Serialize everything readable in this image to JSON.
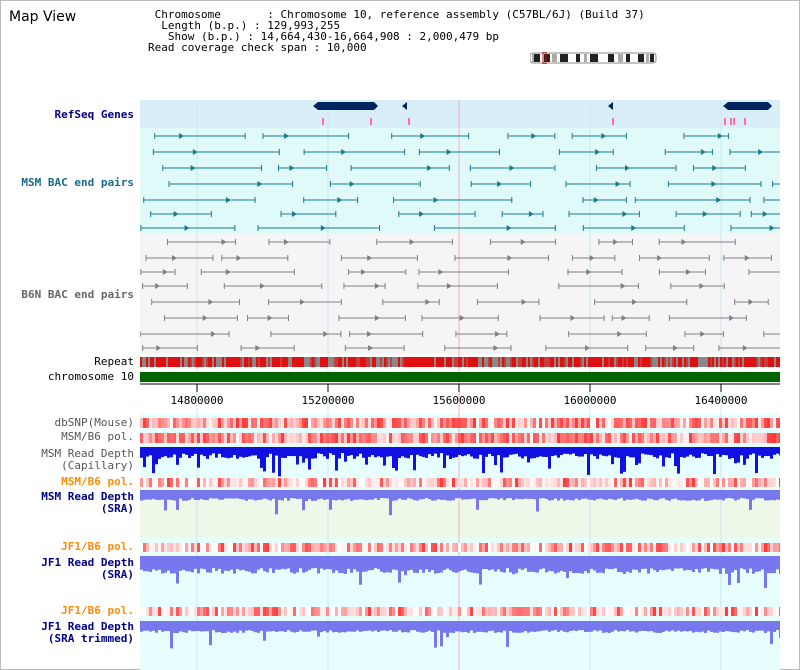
{
  "app": {
    "title": "Map View"
  },
  "info": {
    "chromosome_label": "Chromosome",
    "chromosome_value": "Chromosome 10, reference assembly (C57BL/6J) (Build 37)",
    "length_label": "Length (b.p.)",
    "length_value": "129,993,255",
    "show_label": "Show (b.p.)",
    "show_value": "14,664,430-16,664,908 : 2,000,479 bp",
    "coverage_label": "Read coverage check span",
    "coverage_value": "10,000"
  },
  "tracks": {
    "refseq": "RefSeq Genes",
    "msm_bac": "MSM BAC end pairs",
    "b6n_bac": "B6N BAC end pairs",
    "repeat": "Repeat",
    "chromosome": "chromosome 10",
    "dbsnp": "dbSNP(Mouse)",
    "msm_b6_pol": "MSM/B6 pol.",
    "msm_depth_cap_1": "MSM Read Depth",
    "msm_depth_cap_2": "(Capillary)",
    "msm_b6_pol_2": "MSM/B6 pol.",
    "msm_depth_sra_1": "MSM Read Depth",
    "msm_depth_sra_2": "(SRA)",
    "jf1_b6_pol": "JF1/B6 pol.",
    "jf1_depth_sra_1": "JF1 Read Depth",
    "jf1_depth_sra_2": "(SRA)",
    "jf1_b6_pol_2": "JF1/B6 pol.",
    "jf1_depth_trim_1": "JF1 Read Depth",
    "jf1_depth_trim_2": "(SRA trimmed)"
  },
  "axis": {
    "ticks": [
      "14800000",
      "15200000",
      "15600000",
      "16000000",
      "16400000"
    ],
    "start": 14664430,
    "end": 16664908
  },
  "colors": {
    "refseq_bg": "#d8eef8",
    "msm_bg": "#e0fafa",
    "b6n_bg": "#f5f5f5",
    "track_bg_light": "#e6fefe",
    "sra_bg": "#eef8e8",
    "gene": "#00245e",
    "msm_feature": "#1a7a94",
    "b6n_feature": "#808080",
    "repeat_red": "#e01010",
    "chromosome_green": "#006400",
    "depth_dark": "#1010e0",
    "depth_light": "#7777ee",
    "highlight_line": "#f0b0c0"
  }
}
